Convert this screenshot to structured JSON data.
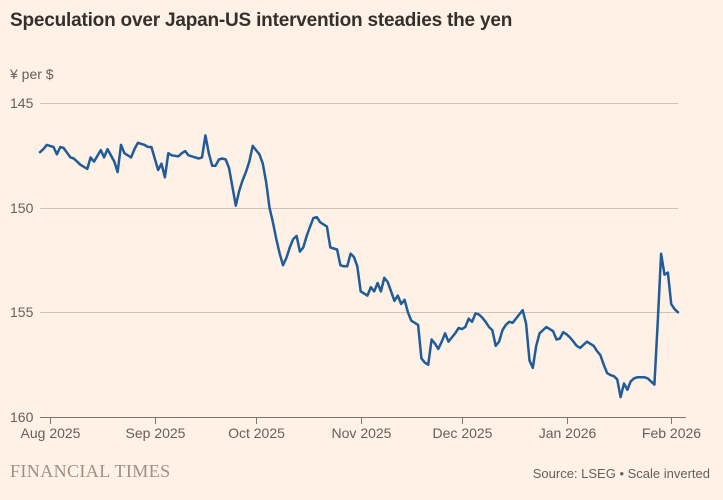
{
  "header": {
    "title": "Speculation over Japan-US intervention steadies the yen"
  },
  "chart": {
    "unit_label": "¥ per $"
  },
  "footer": {
    "brand": "FINANCIAL TIMES",
    "source": "Source: LSEG • Scale inverted"
  },
  "colors": {
    "background": "#FFF1E5",
    "line": "#1F5C99",
    "grid": "#CCC3BA",
    "axis": "#7D766A",
    "title_text": "#33302E",
    "label_text": "#66605C",
    "brand_text": "#9B9184"
  },
  "chart_data": {
    "type": "line",
    "title": "Speculation over Japan-US intervention steadies the yen",
    "xlabel": "",
    "ylabel": "¥ per $",
    "legend": "none",
    "grid": true,
    "y_axis": {
      "range": [
        145,
        160
      ],
      "ticks": [
        145,
        150,
        155,
        160
      ],
      "inverted": true
    },
    "x_axis": {
      "ticks": [
        {
          "date": "2025-08-01",
          "label": "Aug 2025"
        },
        {
          "date": "2025-09-01",
          "label": "Sep 2025"
        },
        {
          "date": "2025-10-01",
          "label": "Oct 2025"
        },
        {
          "date": "2025-11-01",
          "label": "Nov 2025"
        },
        {
          "date": "2025-12-01",
          "label": "Dec 2025"
        },
        {
          "date": "2026-01-01",
          "label": "Jan 2026"
        },
        {
          "date": "2026-02-01",
          "label": "Feb 2026"
        }
      ]
    },
    "domain": {
      "start": "2025-07-29",
      "end": "2026-02-03"
    },
    "series": [
      {
        "name": "Yen per US dollar",
        "points": [
          [
            "2025-07-29",
            147.35
          ],
          [
            "2025-07-30",
            147.2
          ],
          [
            "2025-07-31",
            147.0
          ],
          [
            "2025-08-02",
            147.1
          ],
          [
            "2025-08-03",
            147.45
          ],
          [
            "2025-08-04",
            147.1
          ],
          [
            "2025-08-05",
            147.15
          ],
          [
            "2025-08-07",
            147.6
          ],
          [
            "2025-08-08",
            147.65
          ],
          [
            "2025-08-10",
            147.95
          ],
          [
            "2025-08-12",
            148.15
          ],
          [
            "2025-08-13",
            147.6
          ],
          [
            "2025-08-14",
            147.8
          ],
          [
            "2025-08-16",
            147.25
          ],
          [
            "2025-08-17",
            147.6
          ],
          [
            "2025-08-18",
            147.2
          ],
          [
            "2025-08-20",
            147.8
          ],
          [
            "2025-08-21",
            148.3
          ],
          [
            "2025-08-22",
            147.0
          ],
          [
            "2025-08-23",
            147.4
          ],
          [
            "2025-08-25",
            147.6
          ],
          [
            "2025-08-26",
            147.2
          ],
          [
            "2025-08-27",
            146.9
          ],
          [
            "2025-08-29",
            147.0
          ],
          [
            "2025-08-30",
            147.1
          ],
          [
            "2025-08-31",
            147.1
          ],
          [
            "2025-09-02",
            148.2
          ],
          [
            "2025-09-03",
            147.9
          ],
          [
            "2025-09-04",
            148.55
          ],
          [
            "2025-09-05",
            147.4
          ],
          [
            "2025-09-06",
            147.5
          ],
          [
            "2025-09-08",
            147.55
          ],
          [
            "2025-09-09",
            147.4
          ],
          [
            "2025-09-10",
            147.3
          ],
          [
            "2025-09-11",
            147.5
          ],
          [
            "2025-09-13",
            147.6
          ],
          [
            "2025-09-14",
            147.65
          ],
          [
            "2025-09-15",
            147.6
          ],
          [
            "2025-09-16",
            146.55
          ],
          [
            "2025-09-17",
            147.4
          ],
          [
            "2025-09-18",
            148.0
          ],
          [
            "2025-09-19",
            148.0
          ],
          [
            "2025-09-20",
            147.7
          ],
          [
            "2025-09-21",
            147.65
          ],
          [
            "2025-09-22",
            147.7
          ],
          [
            "2025-09-23",
            148.1
          ],
          [
            "2025-09-24",
            149.0
          ],
          [
            "2025-09-25",
            149.9
          ],
          [
            "2025-09-26",
            149.2
          ],
          [
            "2025-09-27",
            148.7
          ],
          [
            "2025-09-28",
            148.3
          ],
          [
            "2025-09-29",
            147.8
          ],
          [
            "2025-09-30",
            147.05
          ],
          [
            "2025-10-01",
            147.25
          ],
          [
            "2025-10-02",
            147.45
          ],
          [
            "2025-10-03",
            147.9
          ],
          [
            "2025-10-04",
            148.8
          ],
          [
            "2025-10-05",
            150.0
          ],
          [
            "2025-10-06",
            150.7
          ],
          [
            "2025-10-07",
            151.5
          ],
          [
            "2025-10-08",
            152.2
          ],
          [
            "2025-10-09",
            152.75
          ],
          [
            "2025-10-10",
            152.4
          ],
          [
            "2025-10-11",
            151.9
          ],
          [
            "2025-10-12",
            151.5
          ],
          [
            "2025-10-13",
            151.35
          ],
          [
            "2025-10-14",
            152.1
          ],
          [
            "2025-10-15",
            151.9
          ],
          [
            "2025-10-16",
            151.35
          ],
          [
            "2025-10-17",
            150.9
          ],
          [
            "2025-10-18",
            150.5
          ],
          [
            "2025-10-19",
            150.45
          ],
          [
            "2025-10-20",
            150.7
          ],
          [
            "2025-10-21",
            150.8
          ],
          [
            "2025-10-22",
            150.9
          ],
          [
            "2025-10-23",
            151.9
          ],
          [
            "2025-10-24",
            151.95
          ],
          [
            "2025-10-25",
            152.0
          ],
          [
            "2025-10-26",
            152.75
          ],
          [
            "2025-10-27",
            152.8
          ],
          [
            "2025-10-28",
            152.8
          ],
          [
            "2025-10-29",
            152.2
          ],
          [
            "2025-10-30",
            152.35
          ],
          [
            "2025-10-31",
            152.8
          ],
          [
            "2025-11-01",
            154.0
          ],
          [
            "2025-11-02",
            154.1
          ],
          [
            "2025-11-03",
            154.2
          ],
          [
            "2025-11-04",
            153.8
          ],
          [
            "2025-11-05",
            154.0
          ],
          [
            "2025-11-06",
            153.6
          ],
          [
            "2025-11-07",
            154.0
          ],
          [
            "2025-11-08",
            153.35
          ],
          [
            "2025-11-09",
            153.55
          ],
          [
            "2025-11-10",
            154.0
          ],
          [
            "2025-11-11",
            154.45
          ],
          [
            "2025-11-12",
            154.2
          ],
          [
            "2025-11-13",
            154.6
          ],
          [
            "2025-11-14",
            154.4
          ],
          [
            "2025-11-15",
            155.0
          ],
          [
            "2025-11-16",
            155.4
          ],
          [
            "2025-11-17",
            155.5
          ],
          [
            "2025-11-18",
            155.6
          ],
          [
            "2025-11-19",
            157.2
          ],
          [
            "2025-11-20",
            157.4
          ],
          [
            "2025-11-21",
            157.5
          ],
          [
            "2025-11-22",
            156.3
          ],
          [
            "2025-11-23",
            156.5
          ],
          [
            "2025-11-24",
            156.75
          ],
          [
            "2025-11-25",
            156.4
          ],
          [
            "2025-11-26",
            156.0
          ],
          [
            "2025-11-27",
            156.4
          ],
          [
            "2025-11-28",
            156.2
          ],
          [
            "2025-11-29",
            156.0
          ],
          [
            "2025-11-30",
            155.75
          ],
          [
            "2025-12-01",
            155.8
          ],
          [
            "2025-12-02",
            155.7
          ],
          [
            "2025-12-03",
            155.3
          ],
          [
            "2025-12-04",
            155.45
          ],
          [
            "2025-12-05",
            155.05
          ],
          [
            "2025-12-06",
            155.1
          ],
          [
            "2025-12-07",
            155.25
          ],
          [
            "2025-12-08",
            155.45
          ],
          [
            "2025-12-09",
            155.7
          ],
          [
            "2025-12-10",
            155.85
          ],
          [
            "2025-12-11",
            156.6
          ],
          [
            "2025-12-12",
            156.4
          ],
          [
            "2025-12-13",
            155.85
          ],
          [
            "2025-12-14",
            155.6
          ],
          [
            "2025-12-15",
            155.45
          ],
          [
            "2025-12-16",
            155.5
          ],
          [
            "2025-12-17",
            155.3
          ],
          [
            "2025-12-18",
            155.1
          ],
          [
            "2025-12-19",
            154.9
          ],
          [
            "2025-12-20",
            155.55
          ],
          [
            "2025-12-21",
            157.3
          ],
          [
            "2025-12-22",
            157.65
          ],
          [
            "2025-12-23",
            156.6
          ],
          [
            "2025-12-24",
            156.0
          ],
          [
            "2025-12-25",
            155.85
          ],
          [
            "2025-12-26",
            155.7
          ],
          [
            "2025-12-27",
            155.8
          ],
          [
            "2025-12-28",
            155.9
          ],
          [
            "2025-12-29",
            156.3
          ],
          [
            "2025-12-30",
            156.25
          ],
          [
            "2025-12-31",
            155.95
          ],
          [
            "2026-01-01",
            156.05
          ],
          [
            "2026-01-02",
            156.2
          ],
          [
            "2026-01-03",
            156.4
          ],
          [
            "2026-01-04",
            156.6
          ],
          [
            "2026-01-05",
            156.7
          ],
          [
            "2026-01-06",
            156.55
          ],
          [
            "2026-01-07",
            156.4
          ],
          [
            "2026-01-08",
            156.5
          ],
          [
            "2026-01-09",
            156.6
          ],
          [
            "2026-01-10",
            156.85
          ],
          [
            "2026-01-11",
            157.05
          ],
          [
            "2026-01-12",
            157.5
          ],
          [
            "2026-01-13",
            157.9
          ],
          [
            "2026-01-14",
            158.0
          ],
          [
            "2026-01-15",
            158.05
          ],
          [
            "2026-01-16",
            158.2
          ],
          [
            "2026-01-17",
            159.05
          ],
          [
            "2026-01-18",
            158.4
          ],
          [
            "2026-01-19",
            158.7
          ],
          [
            "2026-01-20",
            158.3
          ],
          [
            "2026-01-21",
            158.15
          ],
          [
            "2026-01-22",
            158.1
          ],
          [
            "2026-01-23",
            158.1
          ],
          [
            "2026-01-24",
            158.1
          ],
          [
            "2026-01-25",
            158.15
          ],
          [
            "2026-01-26",
            158.3
          ],
          [
            "2026-01-27",
            158.45
          ],
          [
            "2026-01-28",
            155.5
          ],
          [
            "2026-01-29",
            152.2
          ],
          [
            "2026-01-30",
            153.2
          ],
          [
            "2026-01-31",
            153.1
          ],
          [
            "2026-02-01",
            154.6
          ],
          [
            "2026-02-02",
            154.85
          ],
          [
            "2026-02-03",
            155.0
          ]
        ]
      }
    ]
  }
}
